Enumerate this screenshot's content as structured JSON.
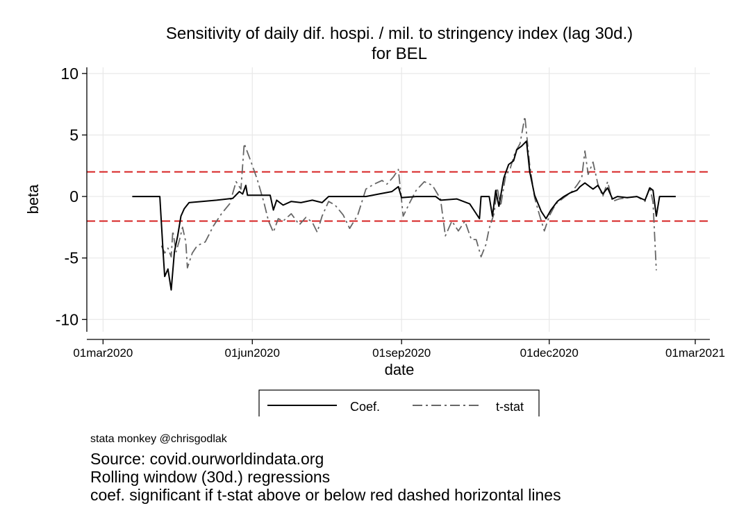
{
  "chart_data": {
    "type": "line",
    "title": "Sensitivity of daily dif. hospi. / mil. to stringency index (lag 30d.)",
    "subtitle": "for BEL",
    "xlabel": "date",
    "ylabel": "beta",
    "ylim": [
      -11,
      10.5
    ],
    "yticks": [
      10,
      5,
      0,
      -5,
      -10
    ],
    "xticks": [
      "01mar2020",
      "01jun2020",
      "01sep2020",
      "01dec2020",
      "01mar2021"
    ],
    "xlim": [
      "2020-02-20",
      "2021-03-10"
    ],
    "grid": true,
    "legend_position": "bottom",
    "reference_lines": [
      2,
      -2
    ],
    "reference_line_color": "#d62020",
    "series": [
      {
        "name": "Coef.",
        "color": "#000000",
        "style": "solid",
        "points": [
          [
            "2020-03-19",
            0
          ],
          [
            "2020-04-05",
            0
          ],
          [
            "2020-04-07",
            -4.5
          ],
          [
            "2020-04-08",
            -6.5
          ],
          [
            "2020-04-10",
            -5.9
          ],
          [
            "2020-04-12",
            -7.6
          ],
          [
            "2020-04-14",
            -4.5
          ],
          [
            "2020-04-16",
            -3.2
          ],
          [
            "2020-04-18",
            -1.6
          ],
          [
            "2020-04-20",
            -1.0
          ],
          [
            "2020-04-23",
            -0.5
          ],
          [
            "2020-05-01",
            -0.4
          ],
          [
            "2020-05-10",
            -0.3
          ],
          [
            "2020-05-20",
            -0.15
          ],
          [
            "2020-05-24",
            0.4
          ],
          [
            "2020-05-26",
            0.2
          ],
          [
            "2020-05-28",
            0.9
          ],
          [
            "2020-05-29",
            0.1
          ],
          [
            "2020-06-12",
            0.1
          ],
          [
            "2020-06-14",
            -1.1
          ],
          [
            "2020-06-16",
            -0.3
          ],
          [
            "2020-06-20",
            -0.7
          ],
          [
            "2020-06-25",
            -0.4
          ],
          [
            "2020-07-01",
            -0.5
          ],
          [
            "2020-07-08",
            -0.3
          ],
          [
            "2020-07-14",
            -0.5
          ],
          [
            "2020-07-18",
            0.0
          ],
          [
            "2020-08-10",
            0.0
          ],
          [
            "2020-08-18",
            0.2
          ],
          [
            "2020-08-26",
            0.4
          ],
          [
            "2020-08-30",
            0.8
          ],
          [
            "2020-09-01",
            -0.1
          ],
          [
            "2020-09-10",
            0.0
          ],
          [
            "2020-09-22",
            0.0
          ],
          [
            "2020-09-25",
            -0.3
          ],
          [
            "2020-10-05",
            -0.2
          ],
          [
            "2020-10-13",
            -0.6
          ],
          [
            "2020-10-19",
            -1.8
          ],
          [
            "2020-10-20",
            0.0
          ],
          [
            "2020-10-25",
            0.0
          ],
          [
            "2020-10-27",
            -1.6
          ],
          [
            "2020-10-29",
            0.5
          ],
          [
            "2020-10-31",
            -0.8
          ],
          [
            "2020-11-03",
            1.5
          ],
          [
            "2020-11-06",
            2.6
          ],
          [
            "2020-11-09",
            2.9
          ],
          [
            "2020-11-11",
            3.8
          ],
          [
            "2020-11-14",
            4.1
          ],
          [
            "2020-11-17",
            4.5
          ],
          [
            "2020-11-19",
            2.0
          ],
          [
            "2020-11-22",
            0.1
          ],
          [
            "2020-11-26",
            -1.2
          ],
          [
            "2020-11-29",
            -1.8
          ],
          [
            "2020-12-02",
            -1.1
          ],
          [
            "2020-12-06",
            -0.4
          ],
          [
            "2020-12-10",
            0.0
          ],
          [
            "2020-12-14",
            0.3
          ],
          [
            "2020-12-18",
            0.5
          ],
          [
            "2020-12-20",
            0.8
          ],
          [
            "2020-12-23",
            1.1
          ],
          [
            "2020-12-26",
            0.8
          ],
          [
            "2020-12-28",
            0.6
          ],
          [
            "2020-12-31",
            0.9
          ],
          [
            "2021-01-03",
            0.2
          ],
          [
            "2021-01-06",
            0.7
          ],
          [
            "2021-01-09",
            -0.2
          ],
          [
            "2021-01-12",
            0.0
          ],
          [
            "2021-01-18",
            -0.1
          ],
          [
            "2021-01-24",
            0.0
          ],
          [
            "2021-01-29",
            -0.3
          ],
          [
            "2021-02-01",
            0.7
          ],
          [
            "2021-02-03",
            0.5
          ],
          [
            "2021-02-05",
            -1.6
          ],
          [
            "2021-02-07",
            0.0
          ],
          [
            "2021-02-17",
            0.0
          ]
        ]
      },
      {
        "name": "t-stat",
        "color": "#666666",
        "style": "dash-dot",
        "points": [
          [
            "2020-04-06",
            -4.0
          ],
          [
            "2020-04-08",
            -4.6
          ],
          [
            "2020-04-10",
            -4.2
          ],
          [
            "2020-04-12",
            -4.9
          ],
          [
            "2020-04-13",
            -2.8
          ],
          [
            "2020-04-15",
            -4.5
          ],
          [
            "2020-04-17",
            -3.6
          ],
          [
            "2020-04-19",
            -2.5
          ],
          [
            "2020-04-21",
            -3.7
          ],
          [
            "2020-04-22",
            -5.8
          ],
          [
            "2020-04-25",
            -4.6
          ],
          [
            "2020-04-28",
            -4.0
          ],
          [
            "2020-05-03",
            -3.7
          ],
          [
            "2020-05-08",
            -2.4
          ],
          [
            "2020-05-13",
            -1.4
          ],
          [
            "2020-05-18",
            -0.6
          ],
          [
            "2020-05-22",
            1.2
          ],
          [
            "2020-05-25",
            0.6
          ],
          [
            "2020-05-27",
            4.3
          ],
          [
            "2020-05-31",
            2.9
          ],
          [
            "2020-06-04",
            1.4
          ],
          [
            "2020-06-08",
            -0.4
          ],
          [
            "2020-06-11",
            -2.0
          ],
          [
            "2020-06-14",
            -2.9
          ],
          [
            "2020-06-17",
            -1.8
          ],
          [
            "2020-06-20",
            -2.0
          ],
          [
            "2020-06-25",
            -1.4
          ],
          [
            "2020-06-30",
            -2.3
          ],
          [
            "2020-07-04",
            -1.7
          ],
          [
            "2020-07-08",
            -2.1
          ],
          [
            "2020-07-11",
            -2.9
          ],
          [
            "2020-07-14",
            -1.6
          ],
          [
            "2020-07-18",
            -0.4
          ],
          [
            "2020-07-22",
            -0.7
          ],
          [
            "2020-07-27",
            -1.5
          ],
          [
            "2020-07-31",
            -2.6
          ],
          [
            "2020-08-05",
            -1.5
          ],
          [
            "2020-08-10",
            0.6
          ],
          [
            "2020-08-15",
            1.0
          ],
          [
            "2020-08-20",
            1.3
          ],
          [
            "2020-08-23",
            1.0
          ],
          [
            "2020-08-27",
            1.6
          ],
          [
            "2020-08-30",
            2.2
          ],
          [
            "2020-09-02",
            -1.6
          ],
          [
            "2020-09-06",
            -0.5
          ],
          [
            "2020-09-10",
            0.5
          ],
          [
            "2020-09-15",
            1.2
          ],
          [
            "2020-09-20",
            0.9
          ],
          [
            "2020-09-25",
            -0.2
          ],
          [
            "2020-09-28",
            -3.2
          ],
          [
            "2020-10-02",
            -2.0
          ],
          [
            "2020-10-06",
            -2.8
          ],
          [
            "2020-10-10",
            -2.0
          ],
          [
            "2020-10-14",
            -3.5
          ],
          [
            "2020-10-17",
            -3.5
          ],
          [
            "2020-10-20",
            -4.9
          ],
          [
            "2020-10-23",
            -3.9
          ],
          [
            "2020-10-25",
            -2.6
          ],
          [
            "2020-10-28",
            -1.4
          ],
          [
            "2020-10-30",
            0.7
          ],
          [
            "2020-11-01",
            -0.8
          ],
          [
            "2020-11-04",
            1.6
          ],
          [
            "2020-11-07",
            2.3
          ],
          [
            "2020-11-10",
            3.6
          ],
          [
            "2020-11-13",
            4.3
          ],
          [
            "2020-11-16",
            6.5
          ],
          [
            "2020-11-19",
            2.5
          ],
          [
            "2020-11-22",
            -0.1
          ],
          [
            "2020-11-25",
            -1.5
          ],
          [
            "2020-11-28",
            -2.8
          ],
          [
            "2020-12-01",
            -1.6
          ],
          [
            "2020-12-05",
            -0.6
          ],
          [
            "2020-12-10",
            -0.1
          ],
          [
            "2020-12-15",
            0.4
          ],
          [
            "2020-12-18",
            0.9
          ],
          [
            "2020-12-21",
            1.5
          ],
          [
            "2020-12-23",
            3.7
          ],
          [
            "2020-12-25",
            1.8
          ],
          [
            "2020-12-28",
            2.8
          ],
          [
            "2020-12-31",
            1.0
          ],
          [
            "2021-01-03",
            0.0
          ],
          [
            "2021-01-06",
            1.2
          ],
          [
            "2021-01-09",
            -0.4
          ],
          [
            "2021-01-13",
            -0.2
          ],
          [
            "2021-01-18",
            -0.1
          ],
          [
            "2021-01-24",
            0.0
          ],
          [
            "2021-01-29",
            -0.4
          ],
          [
            "2021-02-01",
            0.8
          ],
          [
            "2021-02-03",
            -0.5
          ],
          [
            "2021-02-05",
            -6.0
          ]
        ]
      }
    ]
  },
  "notes": {
    "credit": "stata monkey @chrisgodlak",
    "lines": [
      "Source: covid.ourworldindata.org",
      "Rolling window (30d.) regressions",
      "coef. significant if t-stat above or below red dashed horizontal lines"
    ]
  }
}
